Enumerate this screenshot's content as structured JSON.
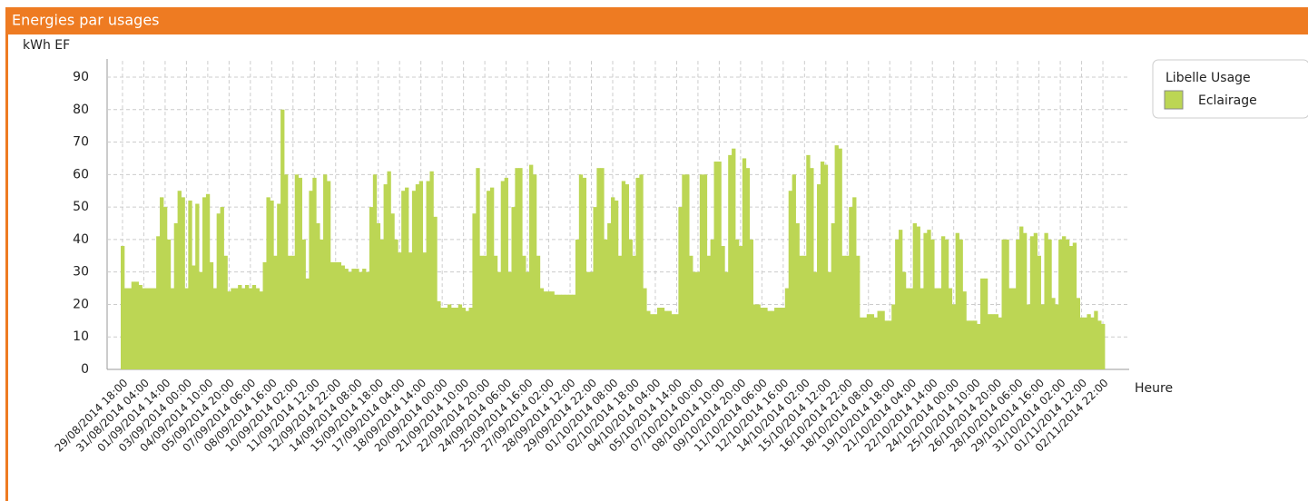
{
  "chart_data": {
    "type": "bar",
    "title": "Energies par usages",
    "y_label": "kWh EF",
    "x_label": "Heure",
    "legend_title": "Libelle Usage",
    "grid": true,
    "ylim": [
      0,
      95
    ],
    "yticks": [
      0,
      10,
      20,
      30,
      40,
      50,
      60,
      70,
      80,
      90
    ],
    "categories": [
      "29/08/2014 18:00",
      null,
      null,
      null,
      null,
      null,
      "31/08/2014 04:00",
      null,
      null,
      null,
      null,
      null,
      "01/09/2014 14:00",
      null,
      null,
      null,
      null,
      null,
      "03/09/2014 00:00",
      null,
      null,
      null,
      null,
      null,
      "04/09/2014 10:00",
      null,
      null,
      null,
      null,
      null,
      "05/09/2014 20:00",
      null,
      null,
      null,
      null,
      null,
      "07/09/2014 06:00",
      null,
      null,
      null,
      null,
      null,
      "08/09/2014 16:00",
      null,
      null,
      null,
      null,
      null,
      "10/09/2014 02:00",
      null,
      null,
      null,
      null,
      null,
      "11/09/2014 12:00",
      null,
      null,
      null,
      null,
      null,
      "12/09/2014 22:00",
      null,
      null,
      null,
      null,
      null,
      "14/09/2014 08:00",
      null,
      null,
      null,
      null,
      null,
      "15/09/2014 18:00",
      null,
      null,
      null,
      null,
      null,
      "17/09/2014 04:00",
      null,
      null,
      null,
      null,
      null,
      "18/09/2014 14:00",
      null,
      null,
      null,
      null,
      null,
      "20/09/2014 00:00",
      null,
      null,
      null,
      null,
      null,
      "21/09/2014 10:00",
      null,
      null,
      null,
      null,
      null,
      "22/09/2014 20:00",
      null,
      null,
      null,
      null,
      null,
      "24/09/2014 06:00",
      null,
      null,
      null,
      null,
      null,
      "25/09/2014 16:00",
      null,
      null,
      null,
      null,
      null,
      "27/09/2014 02:00",
      null,
      null,
      null,
      null,
      null,
      "28/09/2014 12:00",
      null,
      null,
      null,
      null,
      null,
      "29/09/2014 22:00",
      null,
      null,
      null,
      null,
      null,
      "01/10/2014 08:00",
      null,
      null,
      null,
      null,
      null,
      "02/10/2014 18:00",
      null,
      null,
      null,
      null,
      null,
      "04/10/2014 04:00",
      null,
      null,
      null,
      null,
      null,
      "05/10/2014 14:00",
      null,
      null,
      null,
      null,
      null,
      "07/10/2014 00:00",
      null,
      null,
      null,
      null,
      null,
      "08/10/2014 10:00",
      null,
      null,
      null,
      null,
      null,
      "09/10/2014 20:00",
      null,
      null,
      null,
      null,
      null,
      "11/10/2014 06:00",
      null,
      null,
      null,
      null,
      null,
      "12/10/2014 16:00",
      null,
      null,
      null,
      null,
      null,
      "14/10/2014 02:00",
      null,
      null,
      null,
      null,
      null,
      "15/10/2014 12:00",
      null,
      null,
      null,
      null,
      null,
      "16/10/2014 22:00",
      null,
      null,
      null,
      null,
      null,
      "18/10/2014 08:00",
      null,
      null,
      null,
      null,
      null,
      "19/10/2014 18:00",
      null,
      null,
      null,
      null,
      null,
      "21/10/2014 04:00",
      null,
      null,
      null,
      null,
      null,
      "22/10/2014 14:00",
      null,
      null,
      null,
      null,
      null,
      "24/10/2014 00:00",
      null,
      null,
      null,
      null,
      null,
      "25/10/2014 10:00",
      null,
      null,
      null,
      null,
      null,
      "26/10/2014 20:00",
      null,
      null,
      null,
      null,
      null,
      "28/10/2014 06:00",
      null,
      null,
      null,
      null,
      null,
      "29/10/2014 16:00",
      null,
      null,
      null,
      null,
      null,
      "31/10/2014 02:00",
      null,
      null,
      null,
      null,
      null,
      "01/11/2014 12:00",
      null,
      null,
      null,
      null,
      null,
      "02/11/2014 22:00"
    ],
    "series": [
      {
        "name": "Eclairage",
        "color": "#bcd654",
        "values": [
          38,
          25,
          25,
          27,
          27,
          26,
          25,
          25,
          25,
          25,
          41,
          53,
          50,
          40,
          25,
          45,
          55,
          53,
          25,
          52,
          32,
          51,
          30,
          53,
          54,
          33,
          25,
          48,
          50,
          35,
          24,
          25,
          25,
          26,
          25,
          26,
          25,
          26,
          25,
          24,
          33,
          53,
          52,
          35,
          51,
          80,
          60,
          35,
          35,
          60,
          59,
          40,
          28,
          55,
          59,
          45,
          40,
          60,
          58,
          33,
          33,
          33,
          32,
          31,
          30,
          31,
          31,
          30,
          31,
          30,
          50,
          60,
          45,
          40,
          57,
          61,
          48,
          40,
          36,
          55,
          56,
          36,
          55,
          57,
          58,
          36,
          58,
          61,
          47,
          21,
          19,
          19,
          20,
          19,
          19,
          20,
          19,
          18,
          19,
          48,
          62,
          35,
          35,
          55,
          56,
          35,
          30,
          58,
          59,
          30,
          50,
          62,
          62,
          35,
          30,
          63,
          60,
          35,
          25,
          24,
          24,
          24,
          23,
          23,
          23,
          23,
          23,
          23,
          40,
          60,
          59,
          30,
          30,
          50,
          62,
          62,
          40,
          45,
          53,
          52,
          35,
          58,
          57,
          40,
          35,
          59,
          60,
          25,
          18,
          17,
          17,
          19,
          19,
          18,
          18,
          17,
          17,
          50,
          60,
          60,
          35,
          30,
          30,
          60,
          60,
          35,
          40,
          64,
          64,
          38,
          30,
          66,
          68,
          40,
          38,
          65,
          62,
          40,
          20,
          20,
          19,
          19,
          18,
          18,
          19,
          19,
          19,
          25,
          55,
          60,
          45,
          35,
          35,
          66,
          62,
          30,
          57,
          64,
          63,
          30,
          45,
          69,
          68,
          35,
          35,
          50,
          53,
          35,
          16,
          16,
          17,
          17,
          16,
          18,
          18,
          15,
          15,
          20,
          40,
          43,
          30,
          25,
          25,
          45,
          44,
          25,
          42,
          43,
          40,
          25,
          25,
          41,
          40,
          25,
          20,
          42,
          40,
          24,
          15,
          15,
          15,
          14,
          28,
          28,
          17,
          17,
          17,
          16,
          40,
          40,
          25,
          25,
          40,
          44,
          42,
          20,
          41,
          42,
          35,
          20,
          42,
          40,
          22,
          20,
          40,
          41,
          40,
          38,
          39,
          22,
          16,
          16,
          17,
          16,
          18,
          15,
          14
        ]
      }
    ]
  }
}
